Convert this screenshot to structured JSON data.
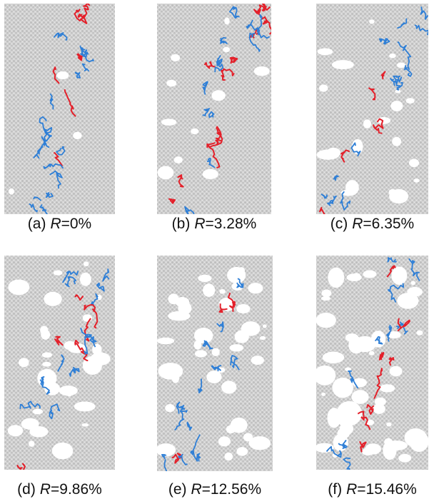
{
  "panels": [
    {
      "label": "(a)",
      "symbol": "R",
      "value": "=0%"
    },
    {
      "label": "(b)",
      "symbol": "R",
      "value": "=3.28%"
    },
    {
      "label": "(c)",
      "symbol": "R",
      "value": "=6.35%"
    },
    {
      "label": "(d)",
      "symbol": "R",
      "value": "=9.86%"
    },
    {
      "label": "(e)",
      "symbol": "R",
      "value": "=12.56%"
    },
    {
      "label": "(f)",
      "symbol": "R",
      "value": "=15.46%"
    }
  ]
}
